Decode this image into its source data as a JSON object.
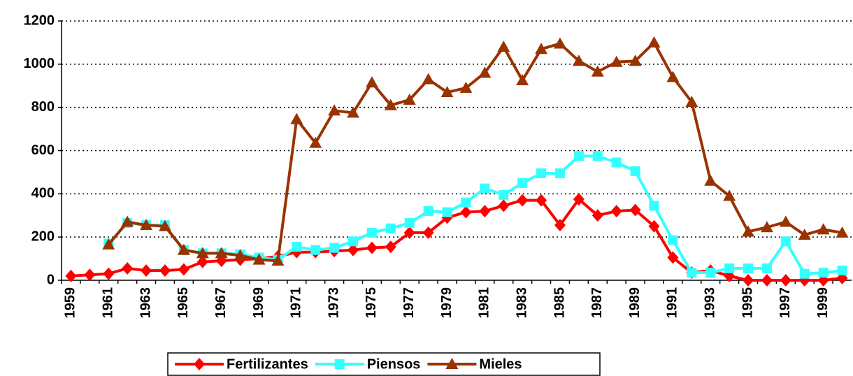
{
  "chart_data": {
    "type": "line",
    "categories": [
      "1959",
      null,
      "1961",
      null,
      "1963",
      null,
      "1965",
      null,
      "1967",
      null,
      "1969",
      null,
      "1971",
      null,
      "1973",
      null,
      "1975",
      null,
      "1977",
      null,
      "1979",
      null,
      "1981",
      null,
      "1983",
      null,
      "1985",
      null,
      "1987",
      null,
      "1989",
      null,
      "1991",
      null,
      "1993",
      null,
      "1995",
      null,
      "1997",
      null,
      "1999",
      null
    ],
    "series": [
      {
        "name": "Fertilizantes",
        "color": "#ff0000",
        "marker": "diamond",
        "values": [
          20,
          25,
          30,
          55,
          45,
          45,
          50,
          85,
          90,
          95,
          100,
          110,
          130,
          130,
          135,
          140,
          150,
          155,
          220,
          220,
          290,
          315,
          320,
          345,
          370,
          370,
          255,
          375,
          300,
          320,
          325,
          250,
          105,
          35,
          45,
          20,
          0,
          0,
          0,
          0,
          0,
          10
        ]
      },
      {
        "name": "Piensos",
        "color": "#33ffff",
        "marker": "square",
        "values": [
          null,
          null,
          170,
          265,
          255,
          255,
          140,
          125,
          125,
          120,
          105,
          95,
          155,
          140,
          150,
          180,
          220,
          240,
          265,
          320,
          315,
          360,
          425,
          395,
          450,
          495,
          495,
          575,
          575,
          545,
          505,
          345,
          185,
          35,
          35,
          55,
          55,
          55,
          180,
          30,
          35,
          45
        ]
      },
      {
        "name": "Mieles",
        "color": "#993300",
        "marker": "triangle",
        "values": [
          null,
          null,
          165,
          270,
          255,
          250,
          140,
          125,
          125,
          115,
          95,
          90,
          745,
          635,
          785,
          775,
          915,
          810,
          835,
          930,
          870,
          890,
          960,
          1080,
          925,
          1070,
          1095,
          1015,
          965,
          1010,
          1015,
          1100,
          940,
          825,
          460,
          390,
          225,
          245,
          270,
          210,
          235,
          220
        ]
      }
    ],
    "ylim": [
      0,
      1200
    ],
    "yticks": [
      0,
      200,
      400,
      600,
      800,
      1000,
      1200
    ],
    "grid": true
  }
}
